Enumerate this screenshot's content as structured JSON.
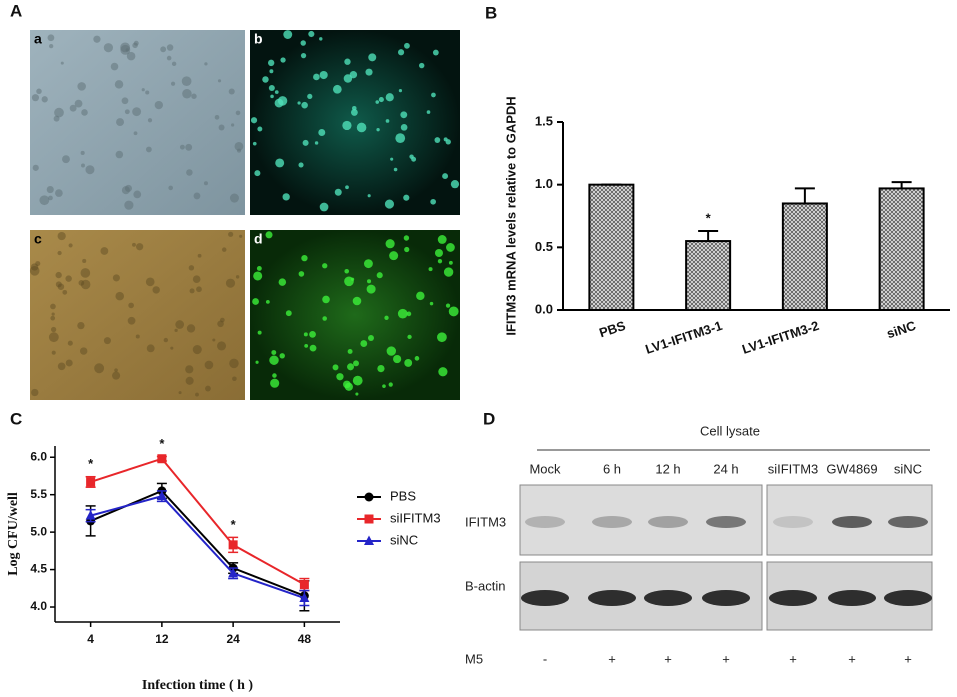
{
  "panel_labels": [
    "A",
    "B",
    "C",
    "D"
  ],
  "image_labels": [
    "a",
    "b",
    "c",
    "d"
  ],
  "chart_data": [
    {
      "type": "bar",
      "ylabel": "IFITM3 mRNA levels relative to GAPDH",
      "categories": [
        "PBS",
        "LV1-IFITM3-1",
        "LV1-IFITM3-2",
        "siNC"
      ],
      "values": [
        1.0,
        0.55,
        0.85,
        0.97
      ],
      "errors": [
        0,
        0.08,
        0.12,
        0.05
      ],
      "significance": [
        null,
        "*",
        null,
        null
      ],
      "color": "#555555",
      "ylim": [
        0,
        1.5
      ],
      "yticks": [
        {
          "value": 0,
          "label": "0.0"
        },
        0.5,
        {
          "value": 1,
          "label": "1.0"
        },
        1.5
      ]
    },
    {
      "type": "line",
      "xlabel": "Infection time ( h )",
      "ylabel": "Log CFU/well",
      "categories": [
        "4",
        "12",
        "24",
        "48"
      ],
      "series": [
        {
          "name": "PBS",
          "color": "#000000",
          "marker": "circle",
          "values": [
            5.15,
            5.55,
            4.52,
            4.15
          ],
          "errors": [
            0.2,
            0.1,
            0.07,
            0.2
          ],
          "significance": [
            null,
            null,
            null,
            null
          ]
        },
        {
          "name": "siIFITM3",
          "color": "#e8262a",
          "marker": "square",
          "values": [
            5.67,
            5.98,
            4.83,
            4.3
          ],
          "errors": [
            0.07,
            0.03,
            0.1,
            0.08
          ],
          "significance": [
            "*",
            "*",
            "*",
            null
          ]
        },
        {
          "name": "siNC",
          "color": "#2424c8",
          "marker": "triangle",
          "values": [
            5.22,
            5.48,
            4.45,
            4.12
          ],
          "errors": [
            0.08,
            0.07,
            0.07,
            0.1
          ],
          "significance": [
            null,
            null,
            null,
            null
          ]
        }
      ],
      "ylim": [
        3.8,
        6.15
      ],
      "yticks": [
        {
          "value": 4,
          "label": "4.0"
        },
        4.5,
        {
          "value": 5,
          "label": "5.0"
        },
        5.5,
        {
          "value": 6,
          "label": "6.0"
        }
      ],
      "legend": "right"
    }
  ],
  "blot": {
    "title": "Cell lysate",
    "columns": [
      "Mock",
      "6 h",
      "12 h",
      "24 h",
      "siIFITM3",
      "GW4869",
      "siNC"
    ],
    "rows": [
      "IFITM3",
      "B-actin"
    ],
    "treatment": {
      "label": "M5",
      "marks": [
        "-",
        "+",
        "+",
        "+",
        "+",
        "+",
        "+"
      ]
    }
  }
}
